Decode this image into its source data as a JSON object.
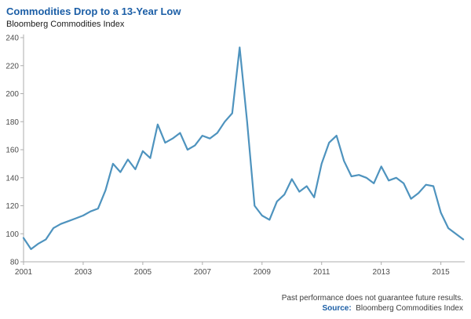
{
  "header": {
    "title": "Commodities Drop to a 13-Year Low",
    "subtitle": "Bloomberg Commodities Index"
  },
  "footer": {
    "disclaimer": "Past performance does not guarantee future results.",
    "source_label": "Source:",
    "source_text": "Bloomberg Commodities Index"
  },
  "colors": {
    "title": "#1B5EA6",
    "line": "#4E93BE",
    "axis": "#ADADAD",
    "tick_text": "#4D4D4D"
  },
  "chart_data": {
    "type": "line",
    "title": "Commodities Drop to a 13-Year Low",
    "subtitle": "Bloomberg Commodities Index",
    "xlabel": "",
    "ylabel": "",
    "xlim": [
      2001,
      2015.8
    ],
    "ylim": [
      80,
      240
    ],
    "y_ticks": [
      80,
      100,
      120,
      140,
      160,
      180,
      200,
      220,
      240
    ],
    "x_tick_labels": [
      2001,
      2003,
      2005,
      2007,
      2009,
      2011,
      2013,
      2015
    ],
    "grid": false,
    "legend": "none",
    "series": [
      {
        "name": "Bloomberg Commodities Index",
        "x_start": 2001,
        "x_step": 0.25,
        "values": [
          97,
          89,
          93,
          96,
          104,
          107,
          109,
          111,
          113,
          116,
          118,
          131,
          150,
          144,
          153,
          146,
          159,
          154,
          178,
          165,
          168,
          172,
          160,
          163,
          170,
          168,
          172,
          180,
          186,
          233,
          180,
          120,
          113,
          110,
          123,
          128,
          139,
          130,
          134,
          126,
          150,
          165,
          170,
          152,
          141,
          142,
          140,
          136,
          148,
          138,
          140,
          136,
          125,
          129,
          135,
          134,
          115,
          104,
          100,
          96
        ]
      }
    ]
  }
}
